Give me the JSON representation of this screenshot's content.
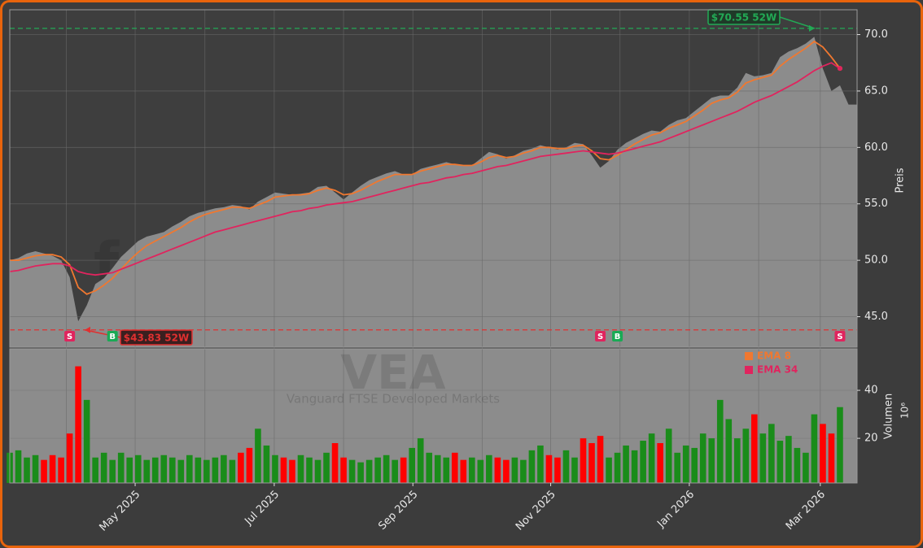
{
  "chart_data": {
    "type": "area",
    "title": "VEA",
    "subtitle": "Vanguard FTSE Developed Markets",
    "watermark": "forexsignale.trade",
    "ylabel": "Preis",
    "y2label": "Volumen",
    "y2unit": "10⁶",
    "xlim": [
      0,
      99
    ],
    "xticks": [
      {
        "value": 14.65,
        "label": "May 2025"
      },
      {
        "value": 30.9,
        "label": "Jul 2025"
      },
      {
        "value": 47.1,
        "label": "Sep 2025"
      },
      {
        "value": 63.2,
        "label": "Nov 2025"
      },
      {
        "value": 79.4,
        "label": "Jan 2026"
      },
      {
        "value": 94.7,
        "label": "Mar 2026"
      }
    ],
    "xgrid": [
      6.6,
      22.8,
      39.0,
      55.2,
      71.3,
      87.5
    ],
    "ylim": [
      42.3,
      72.2
    ],
    "yticks": [
      {
        "value": 45,
        "label": "45.0"
      },
      {
        "value": 50,
        "label": "50.0"
      },
      {
        "value": 55,
        "label": "55.0"
      },
      {
        "value": 60,
        "label": "60.0"
      },
      {
        "value": 65,
        "label": "65.0"
      },
      {
        "value": 70,
        "label": "70.0"
      }
    ],
    "y2lim": [
      1.4,
      57.3
    ],
    "y2ticks": [
      20,
      40
    ],
    "grid": true,
    "close": {
      "color": "#8c8c8c",
      "values": [
        50.0,
        50.2,
        50.6,
        50.8,
        50.6,
        50.4,
        50.0,
        48.5,
        44.6,
        46.0,
        47.9,
        48.4,
        49.3,
        50.3,
        51.0,
        51.7,
        52.1,
        52.3,
        52.5,
        53.0,
        53.4,
        53.9,
        54.2,
        54.4,
        54.6,
        54.7,
        54.9,
        54.8,
        54.5,
        55.2,
        55.6,
        56.0,
        55.9,
        55.8,
        55.9,
        56.0,
        56.5,
        56.6,
        56.0,
        55.4,
        56.0,
        56.6,
        57.1,
        57.4,
        57.7,
        57.9,
        57.6,
        57.6,
        58.1,
        58.3,
        58.5,
        58.7,
        58.5,
        58.4,
        58.4,
        59.0,
        59.6,
        59.4,
        59.0,
        59.3,
        59.7,
        59.9,
        60.2,
        60.0,
        59.8,
        60.0,
        60.4,
        60.3,
        59.3,
        58.2,
        58.8,
        59.8,
        60.4,
        60.8,
        61.2,
        61.5,
        61.4,
        62.0,
        62.4,
        62.6,
        63.2,
        63.8,
        64.4,
        64.6,
        64.6,
        65.3,
        66.6,
        66.3,
        66.4,
        66.6,
        68.0,
        68.5,
        68.8,
        69.2,
        69.8,
        67.0,
        65.0,
        65.5,
        63.8,
        63.8
      ]
    },
    "series": [
      {
        "name": "EMA 8",
        "color": "#f07830",
        "values": [
          50.0,
          50.0,
          50.2,
          50.4,
          50.5,
          50.5,
          50.3,
          49.6,
          47.6,
          47.0,
          47.3,
          47.8,
          48.4,
          49.2,
          50.0,
          50.7,
          51.3,
          51.7,
          52.1,
          52.5,
          52.9,
          53.4,
          53.8,
          54.1,
          54.3,
          54.5,
          54.7,
          54.7,
          54.6,
          54.9,
          55.2,
          55.6,
          55.7,
          55.8,
          55.8,
          55.9,
          56.2,
          56.4,
          56.2,
          55.8,
          55.9,
          56.2,
          56.6,
          57.0,
          57.3,
          57.6,
          57.6,
          57.6,
          57.9,
          58.1,
          58.3,
          58.5,
          58.5,
          58.4,
          58.4,
          58.7,
          59.1,
          59.3,
          59.1,
          59.2,
          59.5,
          59.7,
          60.0,
          60.0,
          59.9,
          59.9,
          60.1,
          60.2,
          59.7,
          59.0,
          58.9,
          59.3,
          59.8,
          60.3,
          60.7,
          61.1,
          61.3,
          61.7,
          62.0,
          62.3,
          62.8,
          63.3,
          63.9,
          64.2,
          64.4,
          64.9,
          65.7,
          66.0,
          66.2,
          66.4,
          67.2,
          67.8,
          68.3,
          68.8,
          69.4,
          68.9,
          68.0,
          67.0,
          null,
          null
        ]
      },
      {
        "name": "EMA 34",
        "color": "#e0245e",
        "values": [
          49.0,
          49.1,
          49.3,
          49.5,
          49.6,
          49.7,
          49.7,
          49.5,
          49.0,
          48.8,
          48.7,
          48.8,
          48.9,
          49.2,
          49.5,
          49.8,
          50.1,
          50.4,
          50.7,
          51.0,
          51.3,
          51.6,
          51.9,
          52.2,
          52.5,
          52.7,
          52.9,
          53.1,
          53.3,
          53.5,
          53.7,
          53.9,
          54.1,
          54.3,
          54.4,
          54.6,
          54.7,
          54.9,
          55.0,
          55.1,
          55.2,
          55.4,
          55.6,
          55.8,
          56.0,
          56.2,
          56.4,
          56.6,
          56.8,
          56.9,
          57.1,
          57.3,
          57.4,
          57.6,
          57.7,
          57.9,
          58.1,
          58.3,
          58.4,
          58.6,
          58.8,
          59.0,
          59.2,
          59.3,
          59.4,
          59.5,
          59.6,
          59.7,
          59.6,
          59.5,
          59.4,
          59.5,
          59.7,
          59.9,
          60.1,
          60.3,
          60.5,
          60.8,
          61.1,
          61.4,
          61.7,
          62.0,
          62.3,
          62.6,
          62.9,
          63.2,
          63.6,
          64.0,
          64.3,
          64.6,
          65.0,
          65.4,
          65.8,
          66.3,
          66.8,
          67.2,
          67.5,
          67.0,
          null,
          null
        ]
      }
    ],
    "volume": {
      "axis": "y2",
      "up_color": "#1a8c1a",
      "down_color": "#ff0000",
      "values": [
        14,
        15,
        12,
        13,
        11,
        13,
        12,
        22,
        50,
        36,
        12,
        14,
        11,
        14,
        12,
        13,
        11,
        12,
        13,
        12,
        11,
        13,
        12,
        11,
        12,
        13,
        11,
        14,
        16,
        24,
        17,
        13,
        12,
        11,
        13,
        12,
        11,
        14,
        18,
        12,
        11,
        10,
        11,
        12,
        13,
        11,
        12,
        16,
        20,
        14,
        13,
        12,
        14,
        11,
        12,
        11,
        13,
        12,
        11,
        12,
        11,
        15,
        17,
        13,
        12,
        15,
        12,
        20,
        18,
        21,
        12,
        14,
        17,
        15,
        19,
        22,
        18,
        24,
        14,
        17,
        16,
        22,
        20,
        36,
        28,
        20,
        24,
        30,
        22,
        26,
        19,
        21,
        16,
        14,
        30,
        26,
        22,
        33,
        null,
        null
      ]
    },
    "annotations": [
      {
        "label": "$70.55 52W",
        "value": 70.55,
        "color": "#22aa55"
      },
      {
        "label": "$43.83 52W",
        "value": 43.83,
        "color": "#e03030"
      }
    ],
    "signals": [
      {
        "label": "S",
        "index": 7,
        "color": "#e0245e"
      },
      {
        "label": "B",
        "index": 12,
        "color": "#1aaa55"
      },
      {
        "label": "S",
        "index": 69,
        "color": "#e0245e"
      },
      {
        "label": "B",
        "index": 71,
        "color": "#1aaa55"
      },
      {
        "label": "S",
        "index": 97,
        "color": "#e0245e"
      }
    ]
  }
}
